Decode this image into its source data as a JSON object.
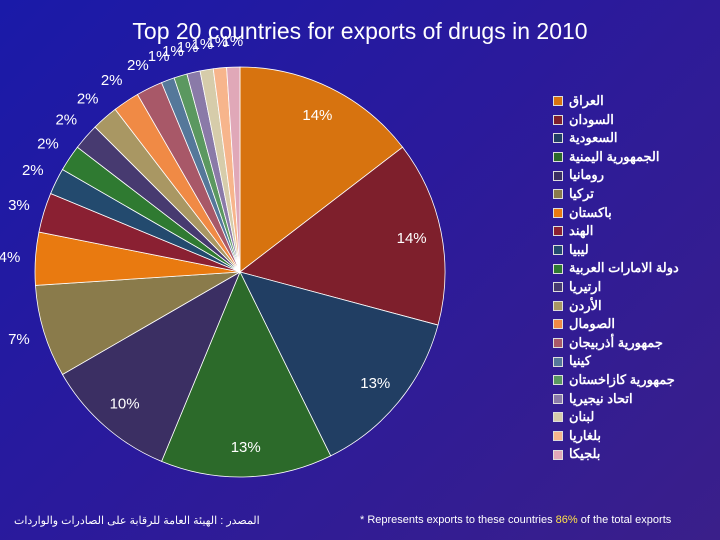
{
  "chart_data": {
    "type": "pie",
    "title": "Top 20 countries for exports of drugs in 2010",
    "slices": [
      {
        "name": "العراق",
        "value": 14,
        "label": "14%",
        "color": "#d7730f"
      },
      {
        "name": "السودان",
        "value": 14,
        "label": "14%",
        "color": "#7e1f2c"
      },
      {
        "name": "السعودية",
        "value": 13,
        "label": "13%",
        "color": "#213e63"
      },
      {
        "name": "الجمهورية اليمنية",
        "value": 13,
        "label": "13%",
        "color": "#2c6a2a"
      },
      {
        "name": "رومانيا",
        "value": 10,
        "label": "10%",
        "color": "#3b2f63"
      },
      {
        "name": "تركيا",
        "value": 7,
        "label": "7%",
        "color": "#8a7b4b"
      },
      {
        "name": "باكستان",
        "value": 4,
        "label": "4%",
        "color": "#e97a10"
      },
      {
        "name": "الهند",
        "value": 3,
        "label": "3%",
        "color": "#8a2032"
      },
      {
        "name": "ليبيا",
        "value": 2,
        "label": "2%",
        "color": "#234a6e"
      },
      {
        "name": "دولة الامارات العربية",
        "value": 2,
        "label": "2%",
        "color": "#2f7a31"
      },
      {
        "name": "ارتيريا",
        "value": 2,
        "label": "2%",
        "color": "#473a70"
      },
      {
        "name": "الأردن",
        "value": 2,
        "label": "2%",
        "color": "#a99763"
      },
      {
        "name": "الصومال",
        "value": 2,
        "label": "2%",
        "color": "#f08a45"
      },
      {
        "name": "جمهورية أذربيجان",
        "value": 2,
        "label": "2%",
        "color": "#a85868"
      },
      {
        "name": "كينيا",
        "value": 1,
        "label": "1%",
        "color": "#55789a"
      },
      {
        "name": "جمهورية كازاخستان",
        "value": 1,
        "label": "1%",
        "color": "#5b9860"
      },
      {
        "name": "اتحاد نيجيريا",
        "value": 1,
        "label": "1%",
        "color": "#8a7aa8"
      },
      {
        "name": "لبنان",
        "value": 1,
        "label": "1%",
        "color": "#d6ccaa"
      },
      {
        "name": "بلغاريا",
        "value": 1,
        "label": "1%",
        "color": "#f7b58c"
      },
      {
        "name": "بلجيكا",
        "value": 1,
        "label": "1%",
        "color": "#e0a8b8"
      }
    ],
    "legend_position": "right"
  },
  "footer": {
    "source": "المصدر : الهيئة العامة للرقابة على الصادرات والواردات",
    "note_prefix": "* Represents exports to these countries ",
    "note_percent": "86%",
    "note_suffix": " of the total exports"
  }
}
